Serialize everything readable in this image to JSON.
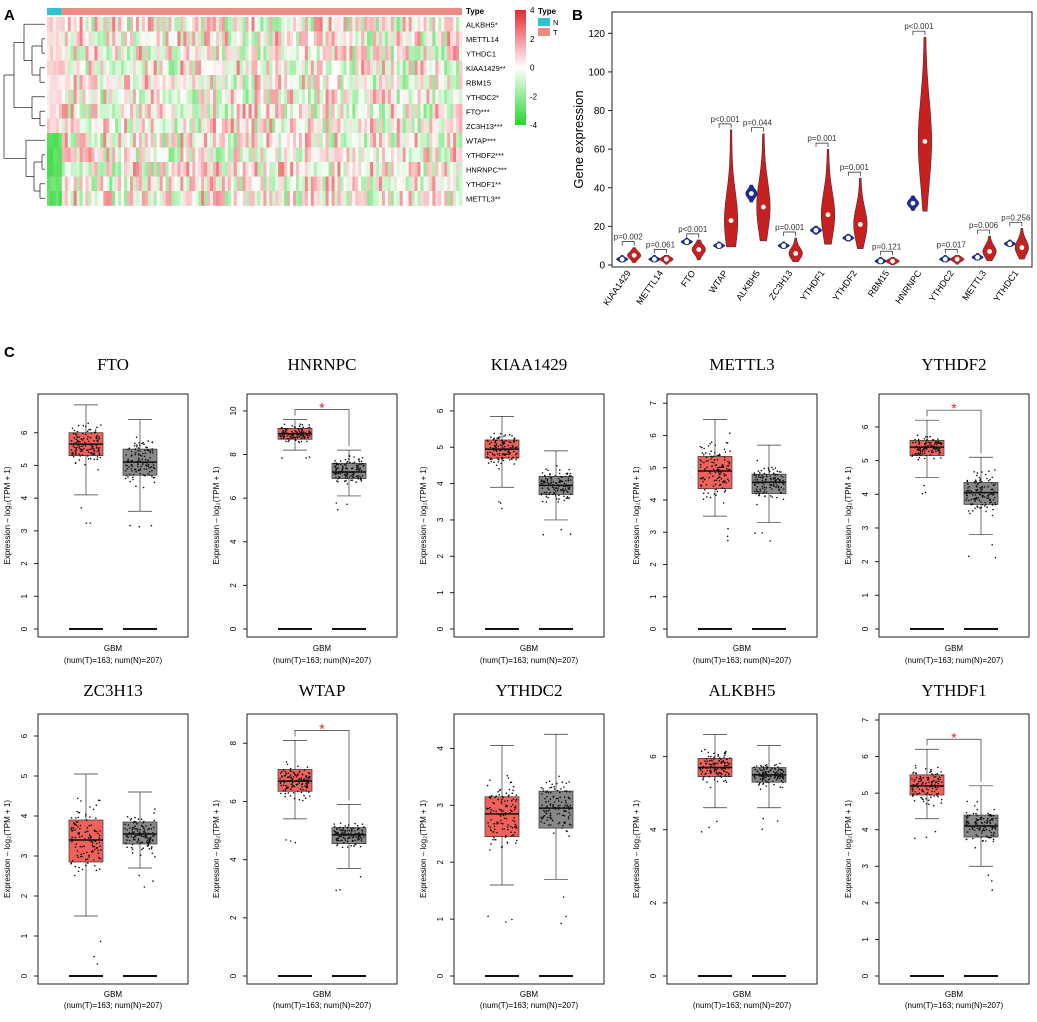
{
  "panel_labels": {
    "a": "A",
    "b": "B",
    "c": "C"
  },
  "chart_data": [
    {
      "panel": "A",
      "type": "heatmap",
      "rows": [
        "ALKBH5*",
        "METTL14",
        "YTHDC1",
        "KIAA1429**",
        "RBM15",
        "YTHDC2*",
        "FTO***",
        "ZC3H13***",
        "WTAP***",
        "YTHDF2***",
        "HNRNPC***",
        "YTHDF1**",
        "METTL3**"
      ],
      "type_legend": {
        "title": "Type",
        "entries": [
          {
            "label": "N",
            "color": "#2ec4cf"
          },
          {
            "label": "T",
            "color": "#f08a84"
          }
        ]
      },
      "annotation_label": "Type",
      "color_scale": {
        "ticks": [
          4,
          2,
          0,
          -2,
          -4
        ],
        "high": "#e8282f",
        "mid": "#ffffff",
        "low": "#25d62c"
      }
    },
    {
      "panel": "B",
      "type": "violin",
      "ylabel": "Gene expression",
      "ylim": [
        0,
        130
      ],
      "yticks": [
        0,
        20,
        40,
        60,
        80,
        100,
        120
      ],
      "categories": [
        "KIAA1429",
        "METTL14",
        "FTO",
        "WTAP",
        "ALKBH5",
        "ZC3H13",
        "YTHDF1",
        "YTHDF2",
        "RBM15",
        "HNRNPC",
        "YTHDC2",
        "METTL3",
        "YTHDC1"
      ],
      "pvalues": [
        "p=0.002",
        "p=0.061",
        "p<0.001",
        "p<0.001",
        "p=0.044",
        "p=0.001",
        "p=0.001",
        "p=0.001",
        "p=0.121",
        "p<0.001",
        "p=0.017",
        "p=0.006",
        "p=0.256"
      ],
      "normal_median": [
        3,
        3,
        12,
        10,
        37,
        10,
        18,
        14,
        2,
        32,
        3,
        4,
        11
      ],
      "tumor_median": [
        5,
        3,
        8,
        23,
        30,
        6,
        26,
        21,
        2,
        64,
        3,
        7,
        9
      ],
      "tumor_top": [
        9,
        5,
        13,
        70,
        68,
        14,
        60,
        45,
        4,
        118,
        5,
        15,
        19
      ],
      "normal_color": "#1a2b9a",
      "tumor_color": "#c62020"
    },
    {
      "panel": "C",
      "type": "boxplot",
      "ylabel": "Expression – log₂(TPM + 1)",
      "xlabel": "GBM",
      "xsub": "(num(T)=163; num(N)=207)",
      "star": "*",
      "tumor_color": "#f0615c",
      "normal_color": "#888888",
      "plots": [
        {
          "title": "FTO",
          "ymax": 7,
          "yticks": [
            0,
            1,
            2,
            3,
            4,
            5,
            6
          ],
          "sig": false,
          "tumor": {
            "lo": 4.1,
            "q1": 5.3,
            "med": 5.65,
            "q3": 6.0,
            "hi": 6.85
          },
          "normal": {
            "lo": 3.6,
            "q1": 4.7,
            "med": 5.1,
            "q3": 5.5,
            "hi": 6.4
          }
        },
        {
          "title": "HNRNPC",
          "ymax": 10.5,
          "yticks": [
            0,
            2,
            4,
            6,
            8,
            10
          ],
          "sig": true,
          "tumor": {
            "lo": 8.2,
            "q1": 8.7,
            "med": 8.95,
            "q3": 9.2,
            "hi": 9.6
          },
          "normal": {
            "lo": 6.1,
            "q1": 6.9,
            "med": 7.2,
            "q3": 7.6,
            "hi": 8.2
          }
        },
        {
          "title": "KIAA1429",
          "ymax": 6.3,
          "yticks": [
            0,
            1,
            2,
            3,
            4,
            5,
            6
          ],
          "sig": false,
          "tumor": {
            "lo": 3.9,
            "q1": 4.7,
            "med": 4.95,
            "q3": 5.2,
            "hi": 5.85
          },
          "normal": {
            "lo": 3.0,
            "q1": 3.7,
            "med": 3.95,
            "q3": 4.2,
            "hi": 4.9
          }
        },
        {
          "title": "METTL3",
          "ymax": 7.1,
          "yticks": [
            0,
            1,
            2,
            3,
            4,
            5,
            6,
            7
          ],
          "sig": false,
          "tumor": {
            "lo": 3.5,
            "q1": 4.35,
            "med": 4.9,
            "q3": 5.35,
            "hi": 6.5
          },
          "normal": {
            "lo": 3.3,
            "q1": 4.2,
            "med": 4.55,
            "q3": 4.8,
            "hi": 5.7
          }
        },
        {
          "title": "YTHDF2",
          "ymax": 6.8,
          "yticks": [
            0,
            1,
            2,
            3,
            4,
            5,
            6
          ],
          "sig": true,
          "tumor": {
            "lo": 4.5,
            "q1": 5.15,
            "med": 5.4,
            "q3": 5.6,
            "hi": 6.2
          },
          "normal": {
            "lo": 2.8,
            "q1": 3.7,
            "med": 4.05,
            "q3": 4.35,
            "hi": 5.1
          }
        },
        {
          "title": "ZC3H13",
          "ymax": 6.4,
          "yticks": [
            0,
            1,
            2,
            3,
            4,
            5,
            6
          ],
          "sig": false,
          "tumor": {
            "lo": 1.5,
            "q1": 2.85,
            "med": 3.4,
            "q3": 3.9,
            "hi": 5.05
          },
          "normal": {
            "lo": 2.7,
            "q1": 3.3,
            "med": 3.55,
            "q3": 3.85,
            "hi": 4.6
          }
        },
        {
          "title": "WTAP",
          "ymax": 8.8,
          "yticks": [
            0,
            2,
            4,
            6,
            8
          ],
          "sig": true,
          "tumor": {
            "lo": 5.4,
            "q1": 6.35,
            "med": 6.7,
            "q3": 7.1,
            "hi": 8.1
          },
          "normal": {
            "lo": 3.7,
            "q1": 4.55,
            "med": 4.85,
            "q3": 5.1,
            "hi": 5.9
          }
        },
        {
          "title": "YTHDC2",
          "ymax": 4.5,
          "yticks": [
            0,
            1,
            2,
            3,
            4
          ],
          "sig": false,
          "tumor": {
            "lo": 1.6,
            "q1": 2.45,
            "med": 2.85,
            "q3": 3.15,
            "hi": 4.05
          },
          "normal": {
            "lo": 1.7,
            "q1": 2.6,
            "med": 2.95,
            "q3": 3.25,
            "hi": 4.25
          }
        },
        {
          "title": "ALKBH5",
          "ymax": 7.0,
          "yticks": [
            0,
            2,
            4,
            6
          ],
          "sig": false,
          "tumor": {
            "lo": 4.6,
            "q1": 5.45,
            "med": 5.7,
            "q3": 5.95,
            "hi": 6.6
          },
          "normal": {
            "lo": 4.6,
            "q1": 5.3,
            "med": 5.5,
            "q3": 5.7,
            "hi": 6.3
          }
        },
        {
          "title": "YTHDF1",
          "ymax": 7.0,
          "yticks": [
            0,
            1,
            2,
            3,
            4,
            5,
            6,
            7
          ],
          "sig": true,
          "tumor": {
            "lo": 4.3,
            "q1": 4.95,
            "med": 5.2,
            "q3": 5.5,
            "hi": 6.2
          },
          "normal": {
            "lo": 3.0,
            "q1": 3.8,
            "med": 4.1,
            "q3": 4.4,
            "hi": 5.2
          }
        }
      ]
    }
  ]
}
